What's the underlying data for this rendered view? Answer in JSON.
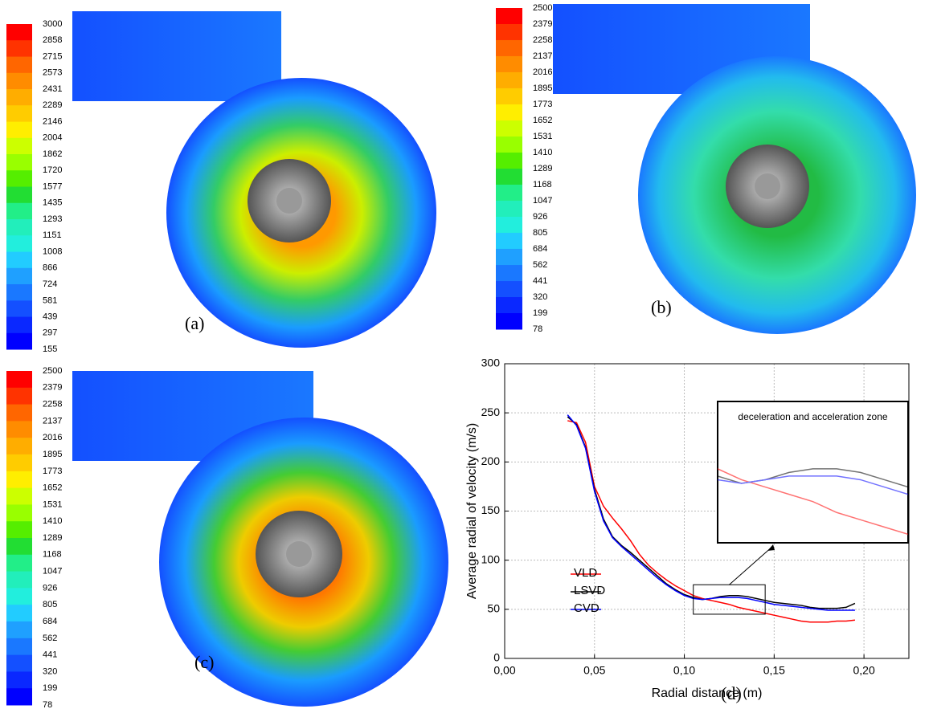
{
  "chart_data": [
    {
      "type": "colorbar",
      "label": "(a)",
      "ticks": [
        3000,
        2858,
        2715,
        2573,
        2431,
        2289,
        2146,
        2004,
        1862,
        1720,
        1577,
        1435,
        1293,
        1151,
        1008,
        866,
        724,
        581,
        439,
        297,
        155
      ],
      "ylim": [
        155,
        3000
      ],
      "colors": [
        "#ff0000",
        "#ff3300",
        "#ff6600",
        "#ff8c00",
        "#ffad00",
        "#ffcc00",
        "#ffee00",
        "#ccff00",
        "#99ff00",
        "#55ee00",
        "#22dd33",
        "#22ee88",
        "#22eebb",
        "#22eedd",
        "#22ccff",
        "#1fa0ff",
        "#1a78ff",
        "#1450ff",
        "#0a28ff",
        "#0000ff"
      ]
    },
    {
      "type": "colorbar",
      "label": "(b)",
      "ticks": [
        2500,
        2379,
        2258,
        2137,
        2016,
        1895,
        1773,
        1652,
        1531,
        1410,
        1289,
        1168,
        1047,
        926,
        805,
        684,
        562,
        441,
        320,
        199,
        78
      ],
      "ylim": [
        78,
        2500
      ],
      "colors": [
        "#ff0000",
        "#ff3300",
        "#ff6600",
        "#ff8c00",
        "#ffad00",
        "#ffcc00",
        "#ffee00",
        "#ccff00",
        "#99ff00",
        "#55ee00",
        "#22dd33",
        "#22ee88",
        "#22eebb",
        "#22eedd",
        "#22ccff",
        "#1fa0ff",
        "#1a78ff",
        "#1450ff",
        "#0a28ff",
        "#0000ff"
      ]
    },
    {
      "type": "colorbar",
      "label": "(c)",
      "ticks": [
        2500,
        2379,
        2258,
        2137,
        2016,
        1895,
        1773,
        1652,
        1531,
        1410,
        1289,
        1168,
        1047,
        926,
        805,
        684,
        562,
        441,
        320,
        199,
        78
      ],
      "ylim": [
        78,
        2500
      ],
      "colors": [
        "#ff0000",
        "#ff3300",
        "#ff6600",
        "#ff8c00",
        "#ffad00",
        "#ffcc00",
        "#ffee00",
        "#ccff00",
        "#99ff00",
        "#55ee00",
        "#22dd33",
        "#22ee88",
        "#22eebb",
        "#22eedd",
        "#22ccff",
        "#1fa0ff",
        "#1a78ff",
        "#1450ff",
        "#0a28ff",
        "#0000ff"
      ]
    },
    {
      "type": "line",
      "label": "(d)",
      "xlabel": "Radial distance (m)",
      "ylabel": "Average radial of velocity (m/s)",
      "xlim": [
        0,
        0.225
      ],
      "ylim": [
        0,
        300
      ],
      "xticks": [
        {
          "value": 0,
          "label": "0,00"
        },
        {
          "value": 0.05,
          "label": "0,05"
        },
        {
          "value": 0.1,
          "label": "0,10"
        },
        {
          "value": 0.15,
          "label": "0,15"
        },
        {
          "value": 0.2,
          "label": "0,20"
        }
      ],
      "yticks": [
        0,
        50,
        100,
        150,
        200,
        250,
        300
      ],
      "grid": true,
      "legend": "lower left",
      "x": [
        0.035,
        0.04,
        0.045,
        0.05,
        0.055,
        0.06,
        0.065,
        0.07,
        0.075,
        0.08,
        0.085,
        0.09,
        0.095,
        0.1,
        0.105,
        0.11,
        0.115,
        0.12,
        0.125,
        0.13,
        0.135,
        0.14,
        0.145,
        0.15,
        0.155,
        0.16,
        0.165,
        0.17,
        0.175,
        0.18,
        0.185,
        0.19,
        0.195
      ],
      "series": [
        {
          "name": "VLD",
          "color": "#ff0000",
          "values": [
            242,
            240,
            220,
            175,
            155,
            143,
            132,
            120,
            106,
            95,
            87,
            80,
            74,
            69,
            64,
            61,
            59,
            57,
            55,
            52,
            50,
            48,
            46,
            44,
            42,
            40,
            38,
            37,
            37,
            37,
            38,
            38,
            39
          ]
        },
        {
          "name": "LSVD",
          "color": "#000000",
          "values": [
            246,
            238,
            215,
            172,
            142,
            124,
            115,
            108,
            100,
            92,
            84,
            76,
            70,
            65,
            62,
            60,
            61,
            63,
            64,
            64,
            63,
            61,
            59,
            57,
            56,
            55,
            54,
            52,
            51,
            51,
            51,
            52,
            56
          ]
        },
        {
          "name": "CVD",
          "color": "#0000ff",
          "values": [
            248,
            237,
            214,
            170,
            140,
            123,
            114,
            106,
            98,
            90,
            82,
            75,
            69,
            64,
            61,
            60,
            61,
            62,
            62,
            62,
            61,
            59,
            57,
            55,
            54,
            53,
            52,
            51,
            50,
            49,
            49,
            49,
            49
          ]
        }
      ],
      "inset": {
        "title": "deceleration and acceleration zone",
        "xlim": [
          0.105,
          0.145
        ],
        "ylim": [
          45,
          75
        ]
      }
    }
  ]
}
